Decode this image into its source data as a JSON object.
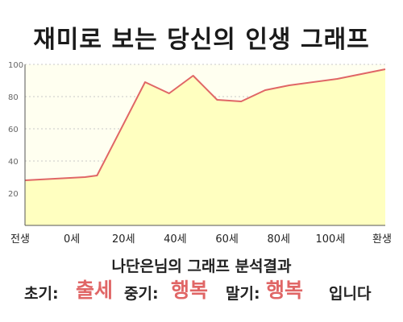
{
  "title": "재미로 보는 당신의 인생 그래프",
  "subtitle": "나단은님의 그래프 분석결과",
  "result": {
    "early_label": "초기:",
    "early_value": "출세",
    "mid_label": "중기:",
    "mid_value": "행복",
    "late_label": "말기:",
    "late_value": "행복",
    "ending": "입니다"
  },
  "colors": {
    "fill": "#ffffc0",
    "fill_light": "#fffff0",
    "line": "#e06666",
    "highlight": "#e06666",
    "grid": "#c8c8c8"
  },
  "chart_data": {
    "type": "area",
    "x_tick_labels": [
      "전생",
      "0세",
      "20세",
      "40세",
      "60세",
      "80세",
      "100세",
      "환생"
    ],
    "y_ticks": [
      20,
      40,
      60,
      80,
      100
    ],
    "ylim": [
      0,
      100
    ],
    "xlim": [
      -30,
      120
    ],
    "grid": "horizontal dashed",
    "series": [
      {
        "x": [
          -30,
          -5,
          0,
          20,
          30,
          40,
          50,
          60,
          70,
          80,
          100,
          120
        ],
        "values": [
          28,
          30,
          31,
          89,
          82,
          93,
          78,
          77,
          84,
          87,
          91,
          97
        ]
      }
    ]
  }
}
